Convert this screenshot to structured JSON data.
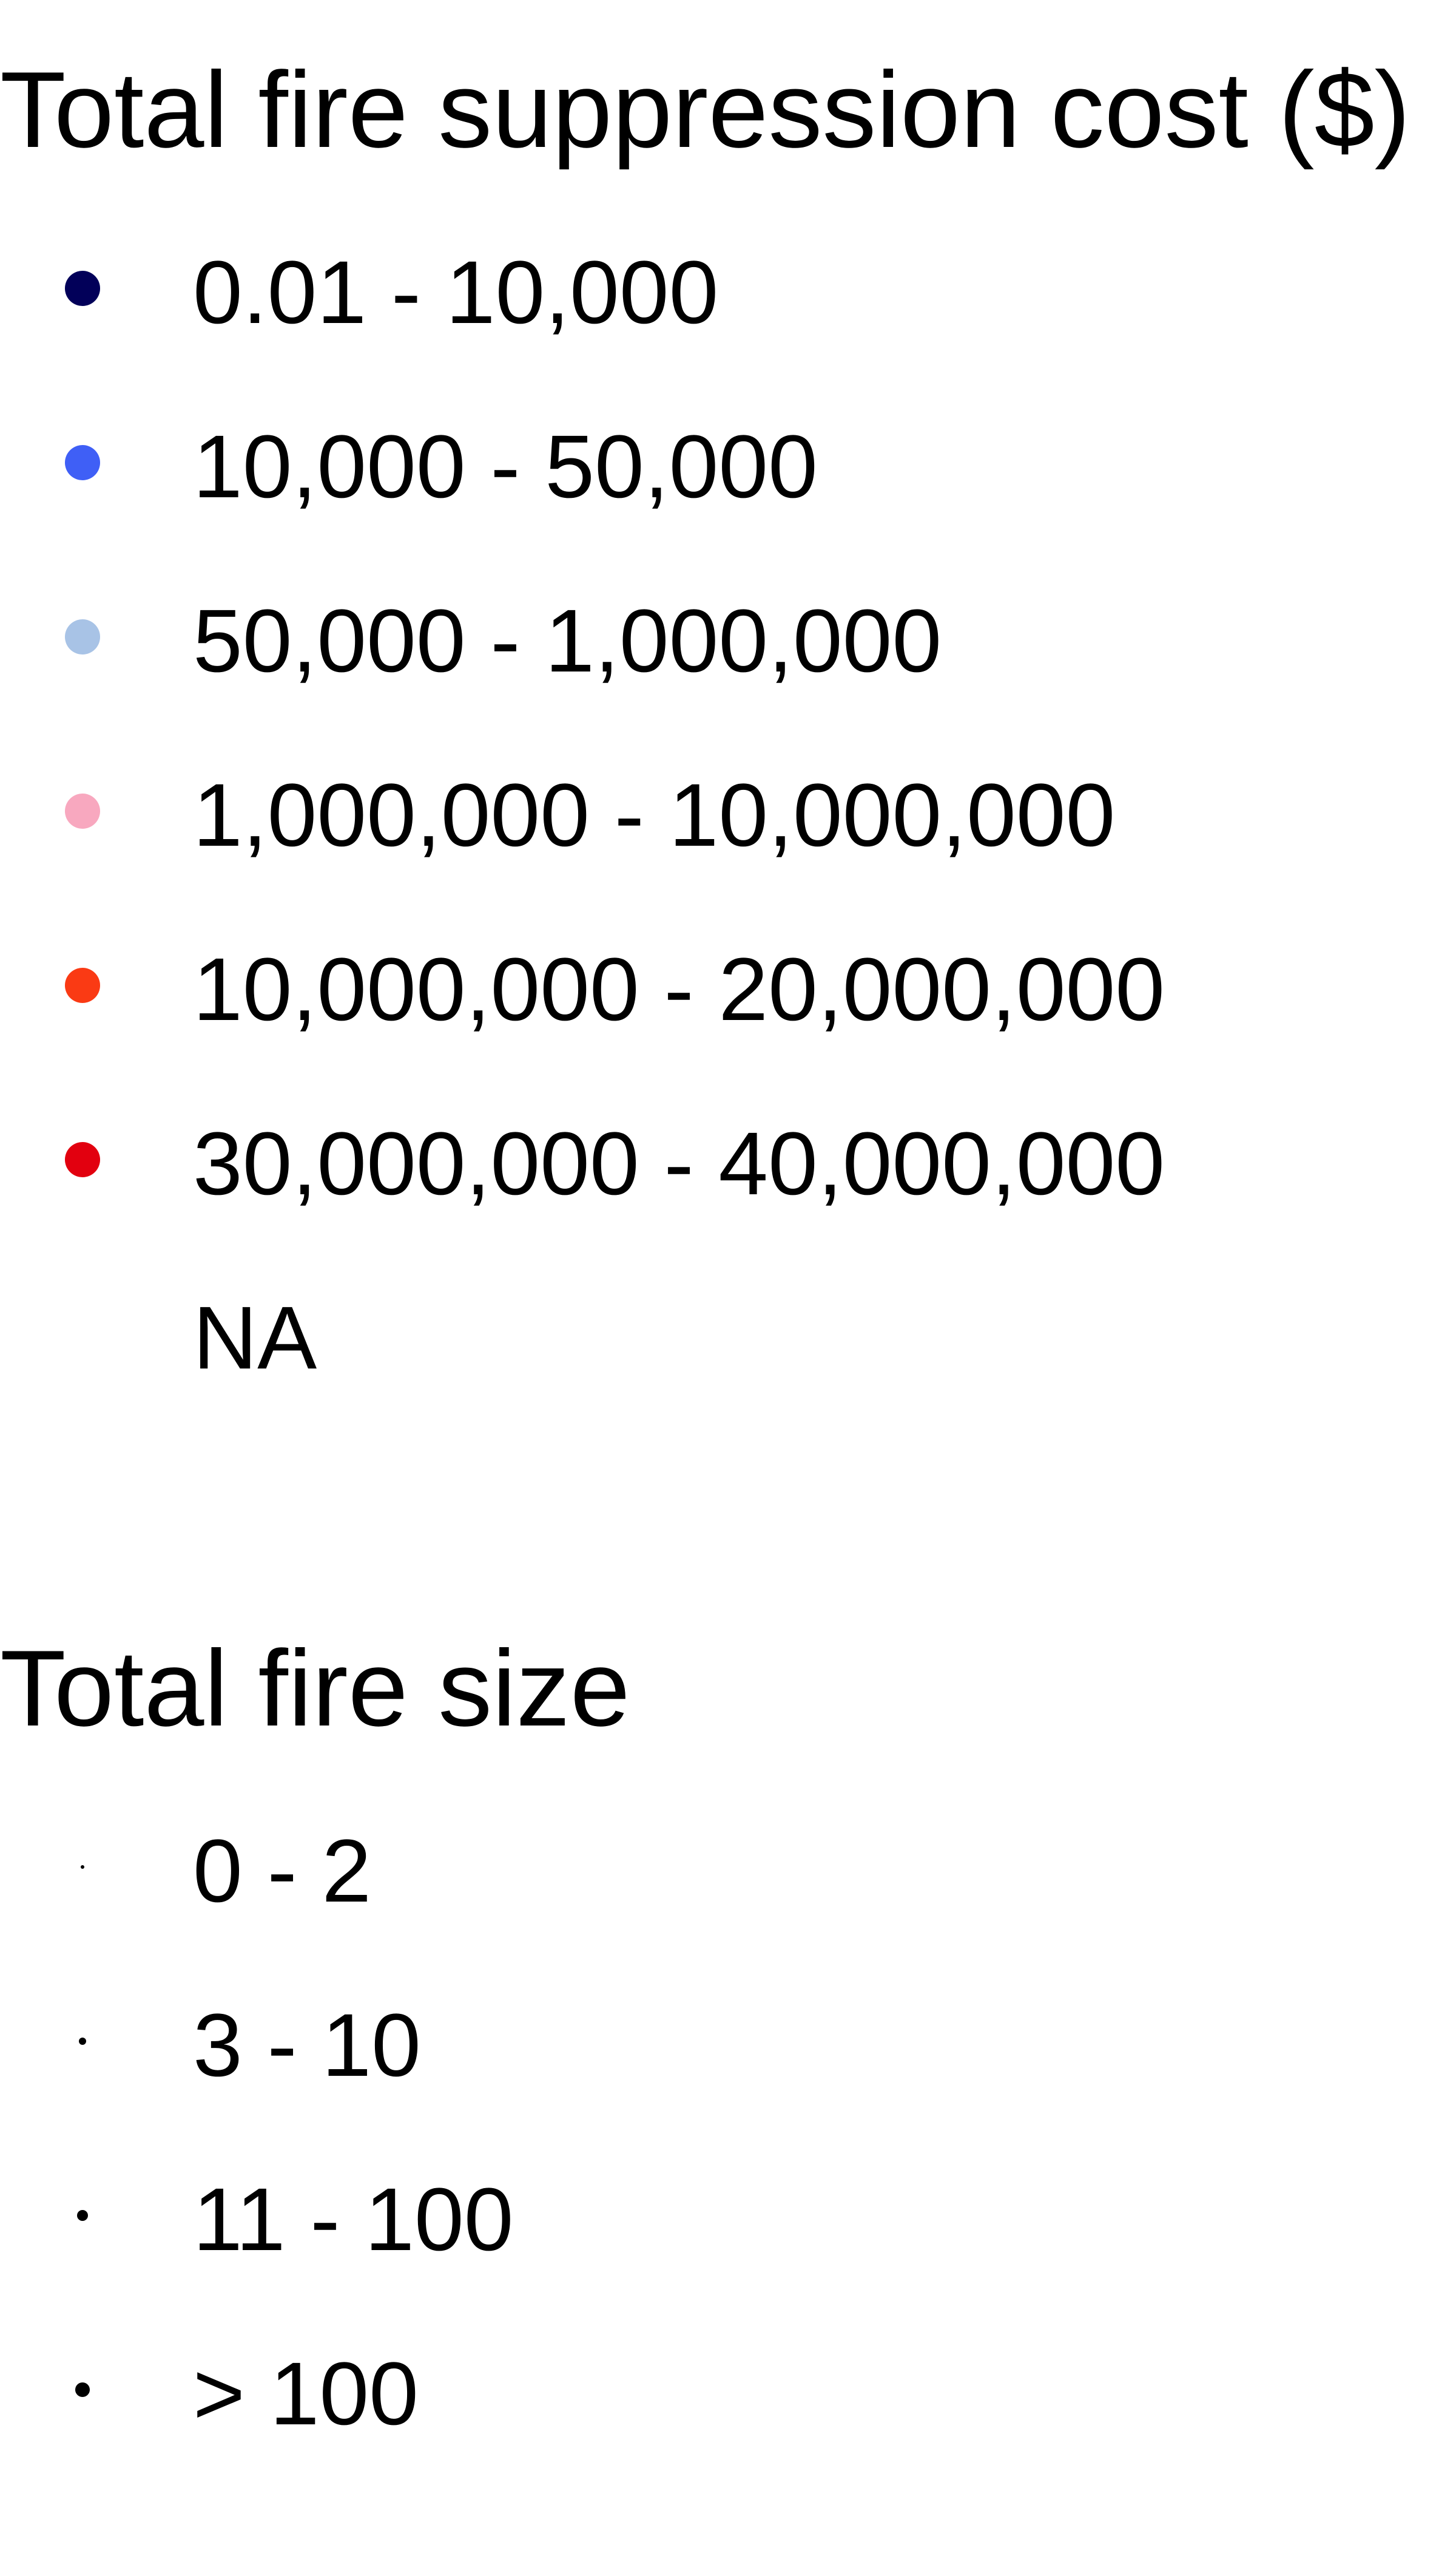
{
  "chart_data": {
    "type": "scatter",
    "legends": [
      {
        "id": "cost",
        "title": "Total fire suppression cost ($)",
        "items": [
          {
            "label": "0.01 - 10,000",
            "color": "#020059"
          },
          {
            "label": "10,000 - 50,000",
            "color": "#3f5ff6"
          },
          {
            "label": "50,000 - 1,000,000",
            "color": "#a8c3e6"
          },
          {
            "label": "1,000,000 - 10,000,000",
            "color": "#f8a8bf"
          },
          {
            "label": "10,000,000 - 20,000,000",
            "color": "#fa3a14"
          },
          {
            "label": "30,000,000 - 40,000,000",
            "color": "#e2000f"
          },
          {
            "label": "NA",
            "color": null
          }
        ]
      },
      {
        "id": "size",
        "title": "Total fire size",
        "items": [
          {
            "label": "0 - 2",
            "size_rank": 1
          },
          {
            "label": "3 - 10",
            "size_rank": 2
          },
          {
            "label": "11 - 100",
            "size_rank": 3
          },
          {
            "label": "> 100",
            "size_rank": 4
          }
        ]
      }
    ]
  }
}
